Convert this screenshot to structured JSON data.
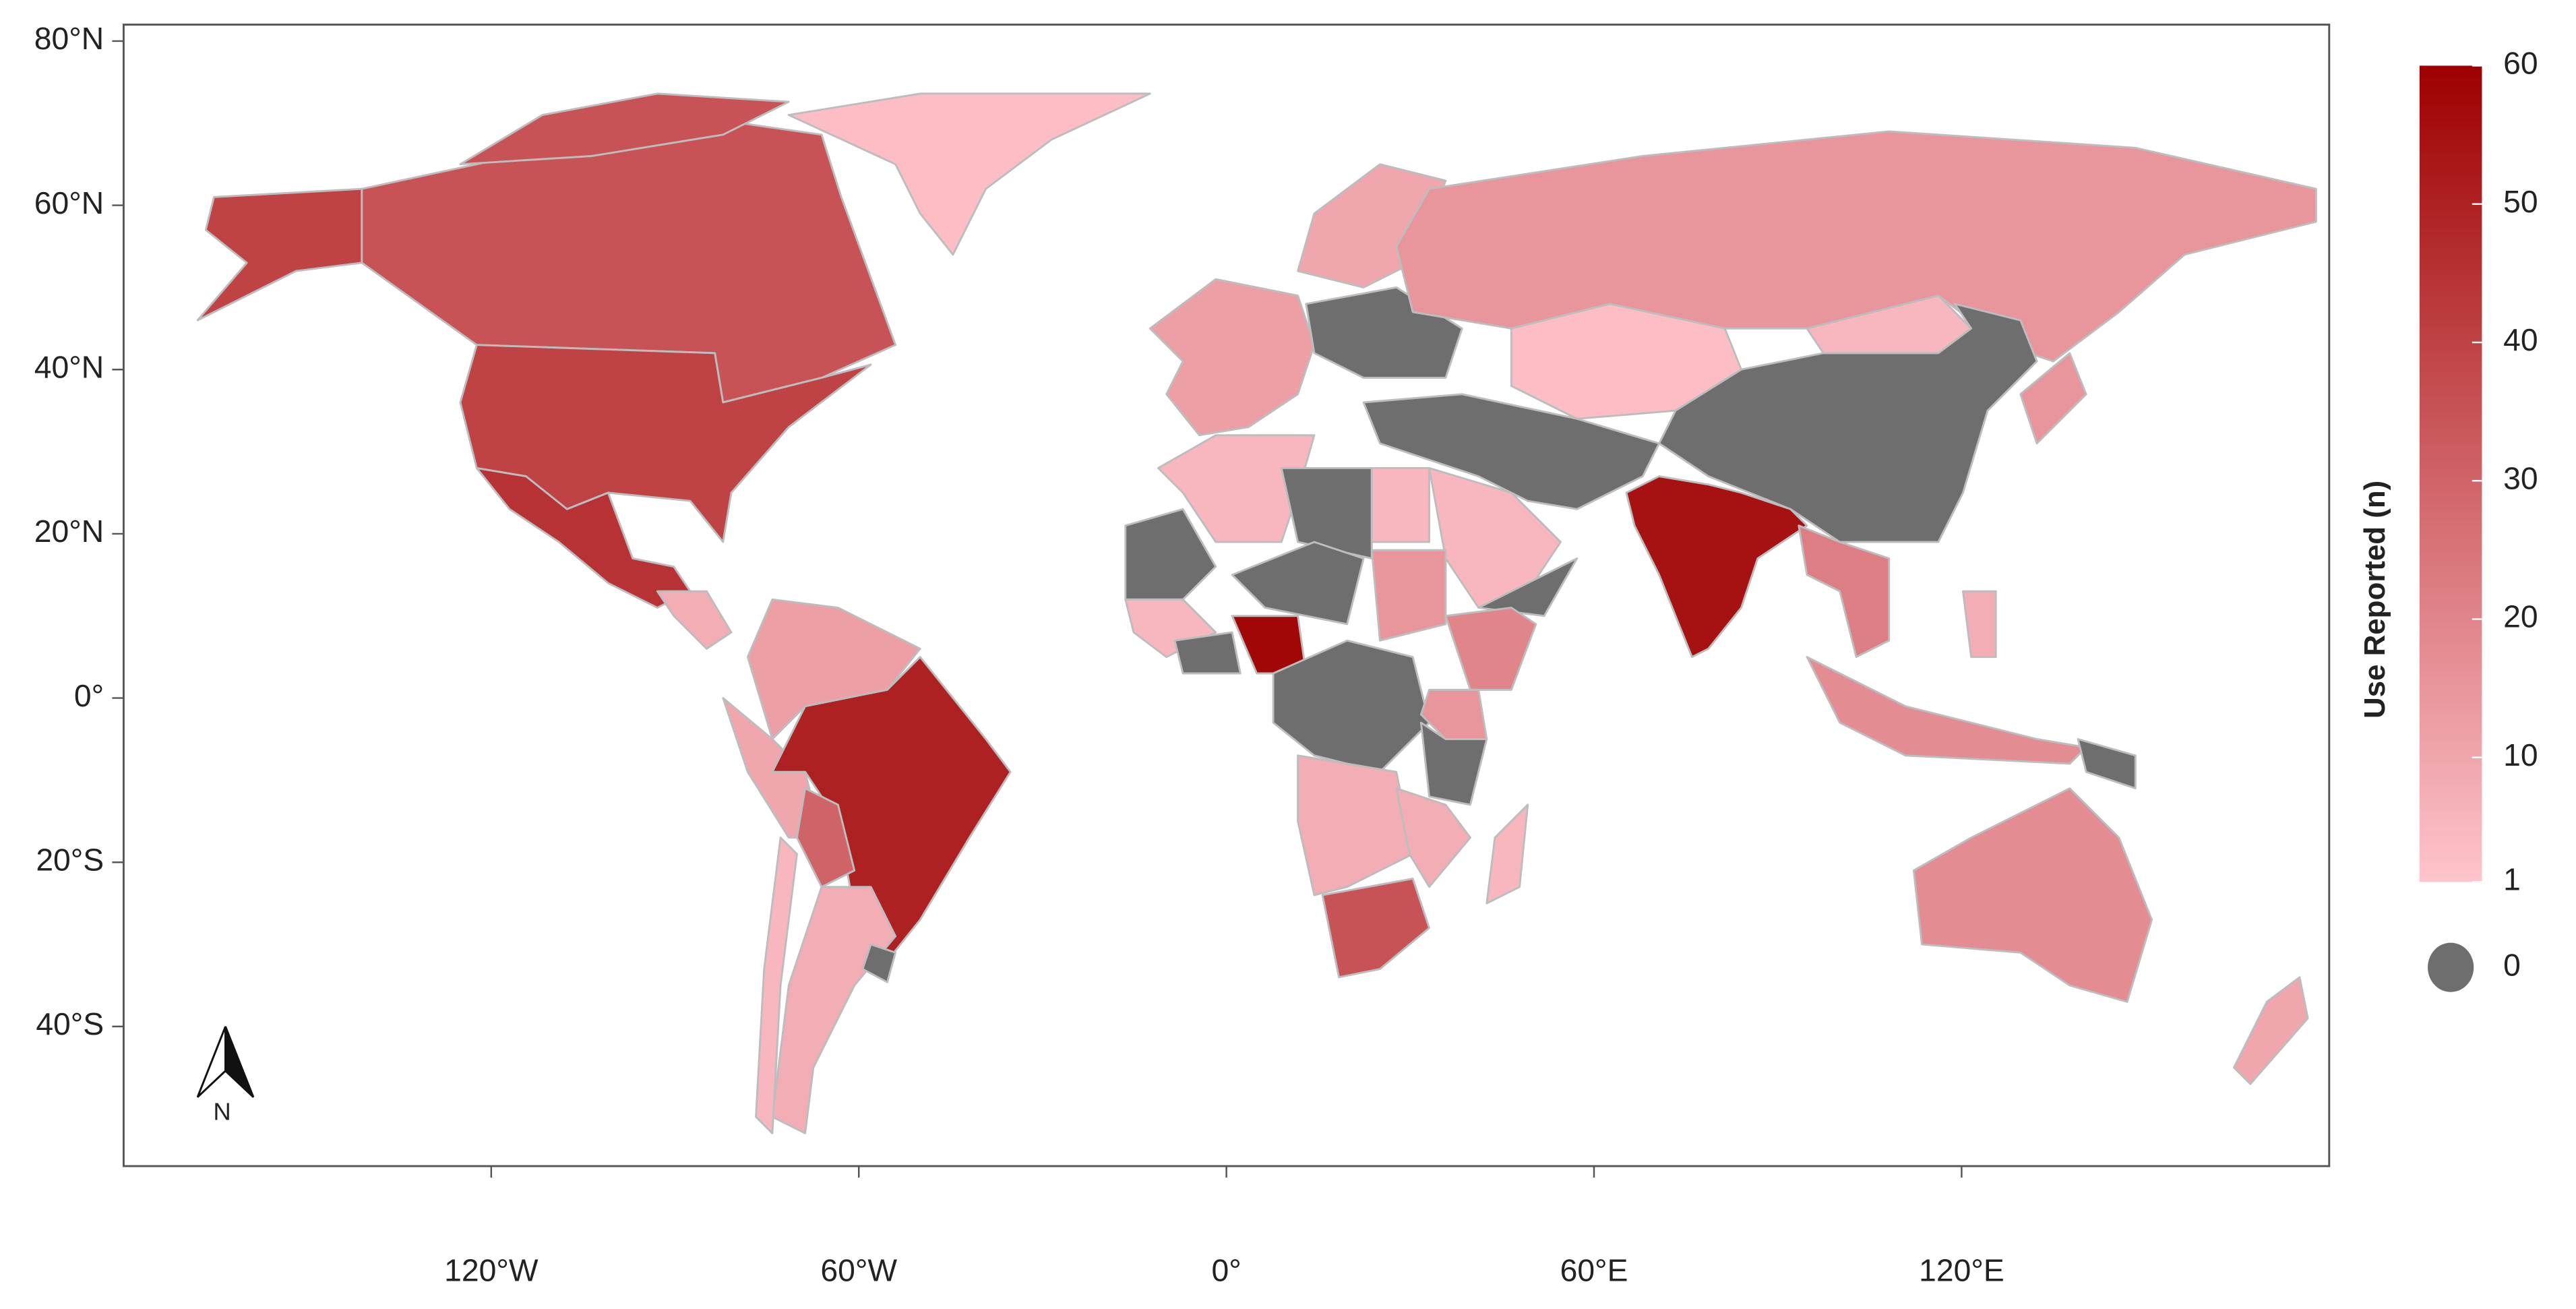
{
  "map": {
    "xlim": [
      -180,
      180
    ],
    "ylim": [
      -57,
      82
    ],
    "xticks": [
      {
        "value": -120,
        "label": "120°W"
      },
      {
        "value": -60,
        "label": "60°W"
      },
      {
        "value": 0,
        "label": "0°"
      },
      {
        "value": 60,
        "label": "60°E"
      },
      {
        "value": 120,
        "label": "120°E"
      }
    ],
    "yticks": [
      {
        "value": 80,
        "label": "80°N"
      },
      {
        "value": 60,
        "label": "60°N"
      },
      {
        "value": 40,
        "label": "40°N"
      },
      {
        "value": 20,
        "label": "20°N"
      },
      {
        "value": 0,
        "label": "0°"
      },
      {
        "value": -20,
        "label": "20°S"
      },
      {
        "value": -40,
        "label": "40°S"
      }
    ],
    "legend": {
      "title": "Use Reported (n)",
      "range": [
        1,
        60
      ],
      "ticks": [
        60,
        50,
        40,
        30,
        20,
        10,
        1
      ],
      "low_color": "#ffc4cc",
      "high_color": "#9e0000",
      "zero": {
        "value": 0,
        "color": "#6e6e6e"
      }
    },
    "compass": "N",
    "regions": [
      35,
      40,
      45,
      3,
      50,
      12,
      10,
      30,
      8,
      5,
      0,
      12,
      10,
      0,
      15,
      3,
      5,
      0,
      0,
      5,
      55,
      22,
      15,
      18,
      0,
      8,
      18,
      10,
      5,
      0,
      5,
      0,
      5,
      0,
      58,
      0,
      15,
      20,
      0,
      15,
      8,
      35,
      5,
      8,
      0
    ]
  }
}
